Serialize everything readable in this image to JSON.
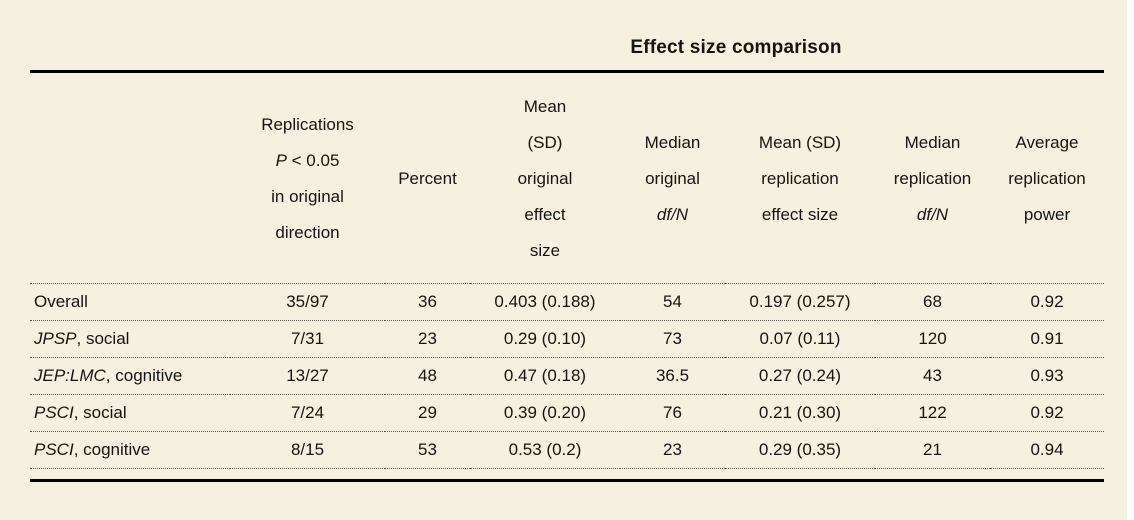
{
  "page": {
    "background": "#f5f0e0",
    "rule_color": "#000000",
    "dotted_color": "#5a564d"
  },
  "table": {
    "title": "Effect size comparison",
    "header": {
      "label_column": "",
      "replications": {
        "line1": "Replications",
        "p": "P",
        "p_rest": " < 0.05",
        "line3": "in original",
        "line4": "direction"
      },
      "percent": "Percent",
      "mean_original": {
        "line1": "Mean",
        "line2": "(SD)",
        "line3": "original",
        "line4": "effect",
        "line5": "size"
      },
      "median_original": {
        "line1": "Median",
        "line2": "original",
        "dfn": "df/N"
      },
      "mean_replication": {
        "line1": "Mean (SD)",
        "line2": "replication",
        "line3": "effect size"
      },
      "median_replication": {
        "line1": "Median",
        "line2": "replication",
        "dfn": "df/N"
      },
      "average_power": {
        "line1": "Average",
        "line2": "replication",
        "line3": "power"
      }
    },
    "rows": [
      {
        "label_em": "",
        "label_rest": "Overall",
        "values": [
          "35/97",
          "36",
          "0.403 (0.188)",
          "54",
          "0.197 (0.257)",
          "68",
          "0.92"
        ]
      },
      {
        "label_em": "JPSP",
        "label_rest": ", social",
        "values": [
          "7/31",
          "23",
          "0.29 (0.10)",
          "73",
          "0.07 (0.11)",
          "120",
          "0.91"
        ]
      },
      {
        "label_em": "JEP:LMC",
        "label_rest": ", cognitive",
        "values": [
          "13/27",
          "48",
          "0.47 (0.18)",
          "36.5",
          "0.27 (0.24)",
          "43",
          "0.93"
        ]
      },
      {
        "label_em": "PSCI",
        "label_rest": ", social",
        "values": [
          "7/24",
          "29",
          "0.39 (0.20)",
          "76",
          "0.21 (0.30)",
          "122",
          "0.92"
        ]
      },
      {
        "label_em": "PSCI",
        "label_rest": ", cognitive",
        "values": [
          "8/15",
          "53",
          "0.53 (0.2)",
          "23",
          "0.29 (0.35)",
          "21",
          "0.94"
        ]
      }
    ]
  }
}
